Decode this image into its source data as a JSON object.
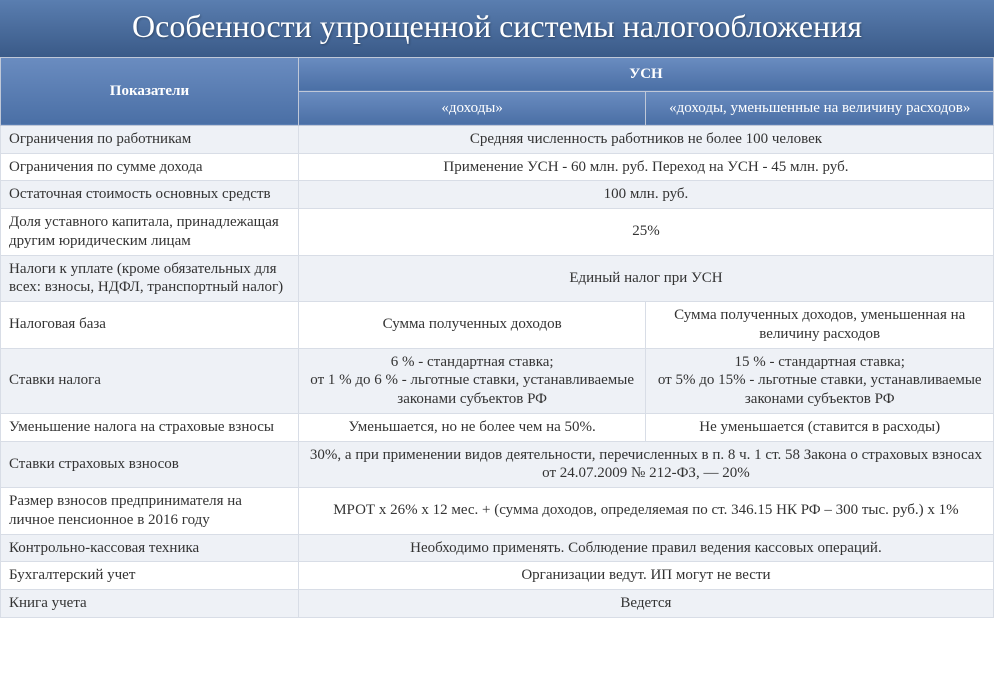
{
  "title": "Особенности упрощенной системы налогообложения",
  "header": {
    "indicators": "Показатели",
    "usn": "УСН",
    "income": "«доходы»",
    "income_minus": "«доходы, уменьшенные на величину расходов»"
  },
  "rows": [
    {
      "label": "Ограничения по работникам",
      "merged": true,
      "val": "Средняя численность работников не более 100 человек",
      "stripe": true
    },
    {
      "label": "Ограничения по сумме дохода",
      "merged": true,
      "val": "Применение УСН - 60 млн. руб. Переход на УСН - 45 млн. руб.",
      "stripe": false
    },
    {
      "label": "Остаточная стоимость основных средств",
      "merged": true,
      "val": "100 млн. руб.",
      "stripe": true
    },
    {
      "label": "Доля уставного капитала, принадлежащая другим юридическим лицам",
      "merged": true,
      "val": "25%",
      "stripe": false
    },
    {
      "label": "Налоги к уплате (кроме обязательных для всех: взносы, НДФЛ, транспортный налог)",
      "merged": true,
      "val": "Единый налог при УСН",
      "stripe": true
    },
    {
      "label": "Налоговая база",
      "merged": false,
      "v1": "Сумма полученных доходов",
      "v2": "Сумма полученных доходов, уменьшенная на величину расходов",
      "stripe": false
    },
    {
      "label": "Ставки налога",
      "merged": false,
      "v1": "6 % - стандартная ставка;\nот 1 % до 6 % - льготные ставки, устанавливаемые законами субъектов РФ",
      "v2": "15 % - стандартная ставка;\nот 5% до 15% - льготные ставки, устанавливаемые законами субъектов РФ",
      "stripe": true
    },
    {
      "label": "Уменьшение налога на страховые взносы",
      "merged": false,
      "v1": "Уменьшается, но не более чем на 50%.",
      "v2": "Не уменьшается  (ставится в расходы)",
      "stripe": false
    },
    {
      "label": "Ставки страховых взносов",
      "merged": true,
      "val": "30%, а при применении видов деятельности, перечисленных в п. 8 ч. 1 ст. 58 Закона о страховых взносах от 24.07.2009 № 212-ФЗ, — 20%",
      "stripe": true
    },
    {
      "label": "Размер взносов предпринимателя на личное пенсионное в 2016 году",
      "merged": true,
      "val": "МРОТ х 26% х 12 мес. + (сумма доходов, определяемая по ст. 346.15 НК РФ – 300 тыс. руб.) х 1%",
      "stripe": false
    },
    {
      "label": "Контрольно-кассовая техника",
      "merged": true,
      "val": "Необходимо применять. Соблюдение правил ведения кассовых операций.",
      "stripe": true
    },
    {
      "label": "Бухгалтерский учет",
      "merged": true,
      "val": "Организации ведут. ИП могут не вести",
      "stripe": false
    },
    {
      "label": "Книга учета",
      "merged": true,
      "val": "Ведется",
      "stripe": true
    }
  ]
}
